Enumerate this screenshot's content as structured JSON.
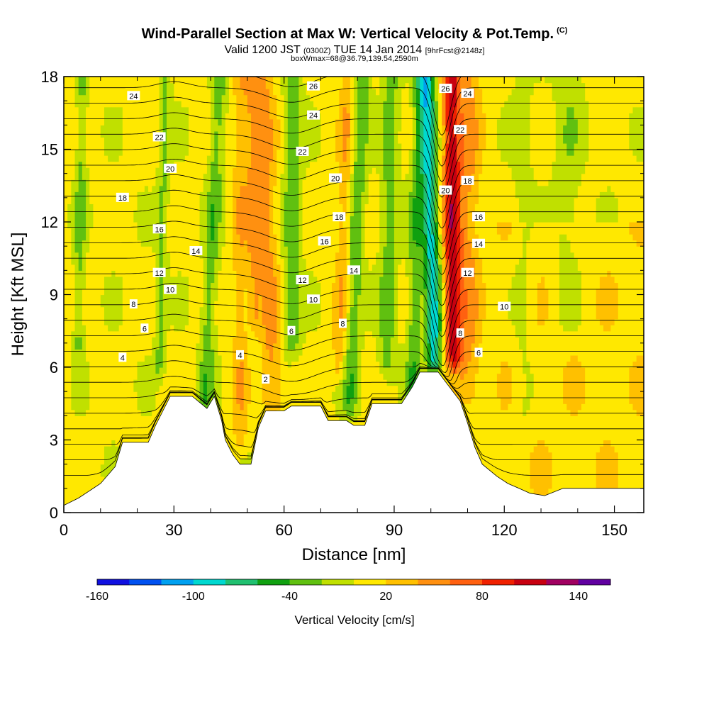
{
  "header": {
    "title": "Wind-Parallel Section at Max W: Vertical Velocity & Pot.Temp.",
    "copyright": "(C)",
    "valid_prefix": "Valid 1200 JST",
    "valid_utc": "(0300Z)",
    "valid_date": "TUE 14 Jan 2014",
    "forecast": "[9hrFcst@2148z]",
    "box_info": "boxWmax=68@36.79,139.54,2590m"
  },
  "chart_data": {
    "type": "heatmap",
    "xlabel": "Distance [nm]",
    "ylabel": "Height [Kft MSL]",
    "xlim": [
      0,
      158
    ],
    "ylim": [
      0,
      18
    ],
    "x_ticks": [
      0,
      30,
      60,
      90,
      120,
      150
    ],
    "y_ticks": [
      0,
      3,
      6,
      9,
      12,
      15,
      18
    ],
    "colorbar": {
      "label": "Vertical Velocity [cm/s]",
      "range": [
        -160,
        160
      ],
      "tick_values": [
        -160,
        -100,
        -40,
        20,
        80,
        140
      ],
      "colors": [
        "#1010e0",
        "#0050f0",
        "#00a0f0",
        "#00d8d0",
        "#20c070",
        "#10a010",
        "#60c010",
        "#c0e000",
        "#ffe800",
        "#ffc000",
        "#ff9010",
        "#ff6010",
        "#f02000",
        "#c80010",
        "#a00060",
        "#6000a0"
      ]
    },
    "terrain_profile": [
      [
        0,
        0.3
      ],
      [
        4,
        0.6
      ],
      [
        7,
        0.9
      ],
      [
        10,
        1.2
      ],
      [
        14,
        1.9
      ],
      [
        16,
        2.9
      ],
      [
        23,
        2.9
      ],
      [
        25,
        3.6
      ],
      [
        29,
        4.8
      ],
      [
        35,
        4.8
      ],
      [
        39,
        4.3
      ],
      [
        41,
        4.8
      ],
      [
        42,
        4.3
      ],
      [
        43,
        3.8
      ],
      [
        44,
        3.0
      ],
      [
        46,
        2.4
      ],
      [
        48,
        2.0
      ],
      [
        51,
        2.0
      ],
      [
        53,
        3.5
      ],
      [
        55,
        4.2
      ],
      [
        60,
        4.2
      ],
      [
        62,
        4.4
      ],
      [
        70,
        4.4
      ],
      [
        72,
        3.8
      ],
      [
        77,
        3.8
      ],
      [
        79,
        3.6
      ],
      [
        82,
        3.6
      ],
      [
        84,
        4.5
      ],
      [
        92,
        4.5
      ],
      [
        95,
        5.2
      ],
      [
        97,
        5.8
      ],
      [
        102,
        5.8
      ],
      [
        104,
        5.4
      ],
      [
        106,
        5.0
      ],
      [
        108,
        4.6
      ],
      [
        110,
        3.7
      ],
      [
        112,
        2.7
      ],
      [
        114,
        2.0
      ],
      [
        118,
        1.5
      ],
      [
        121,
        1.2
      ],
      [
        124,
        1.0
      ],
      [
        127,
        0.8
      ],
      [
        131,
        0.7
      ],
      [
        136,
        1.0
      ],
      [
        150,
        1.0
      ],
      [
        158,
        1.0
      ]
    ],
    "theta_labels": [
      {
        "text": "24",
        "x": 19,
        "y": 17.2
      },
      {
        "text": "22",
        "x": 26,
        "y": 15.5
      },
      {
        "text": "20",
        "x": 29,
        "y": 14.2
      },
      {
        "text": "18",
        "x": 16,
        "y": 13.0
      },
      {
        "text": "16",
        "x": 26,
        "y": 11.7
      },
      {
        "text": "14",
        "x": 36,
        "y": 10.8
      },
      {
        "text": "12",
        "x": 26,
        "y": 9.9
      },
      {
        "text": "10",
        "x": 29,
        "y": 9.2
      },
      {
        "text": "8",
        "x": 19,
        "y": 8.6
      },
      {
        "text": "6",
        "x": 22,
        "y": 7.6
      },
      {
        "text": "4",
        "x": 16,
        "y": 6.4
      },
      {
        "text": "4",
        "x": 48,
        "y": 6.5
      },
      {
        "text": "2",
        "x": 55,
        "y": 5.5
      },
      {
        "text": "26",
        "x": 68,
        "y": 17.6
      },
      {
        "text": "24",
        "x": 68,
        "y": 16.4
      },
      {
        "text": "22",
        "x": 65,
        "y": 14.9
      },
      {
        "text": "20",
        "x": 74,
        "y": 13.8
      },
      {
        "text": "18",
        "x": 75,
        "y": 12.2
      },
      {
        "text": "16",
        "x": 71,
        "y": 11.2
      },
      {
        "text": "14",
        "x": 79,
        "y": 10.0
      },
      {
        "text": "12",
        "x": 65,
        "y": 9.6
      },
      {
        "text": "10",
        "x": 68,
        "y": 8.8
      },
      {
        "text": "8",
        "x": 76,
        "y": 7.8
      },
      {
        "text": "6",
        "x": 62,
        "y": 7.5
      },
      {
        "text": "26",
        "x": 104,
        "y": 17.5
      },
      {
        "text": "24",
        "x": 110,
        "y": 17.3
      },
      {
        "text": "22",
        "x": 108,
        "y": 15.8
      },
      {
        "text": "20",
        "x": 104,
        "y": 13.3
      },
      {
        "text": "18",
        "x": 110,
        "y": 13.7
      },
      {
        "text": "16",
        "x": 113,
        "y": 12.2
      },
      {
        "text": "14",
        "x": 113,
        "y": 11.1
      },
      {
        "text": "12",
        "x": 110,
        "y": 9.9
      },
      {
        "text": "10",
        "x": 120,
        "y": 8.5
      },
      {
        "text": "8",
        "x": 108,
        "y": 7.4
      },
      {
        "text": "6",
        "x": 113,
        "y": 6.6
      }
    ]
  }
}
